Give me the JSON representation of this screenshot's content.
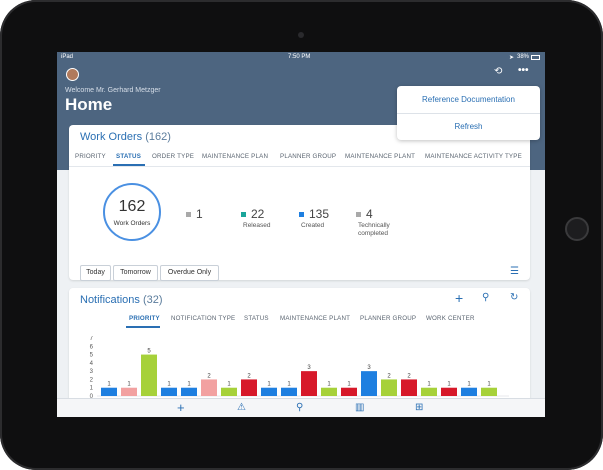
{
  "device": {
    "label": "iPad"
  },
  "status_bar": {
    "carrier": "iPad",
    "time": "7:50 PM",
    "battery": "38%"
  },
  "header": {
    "welcome": "Welcome Mr. Gerhard Metzger",
    "title": "Home"
  },
  "menu": {
    "items": [
      "Reference Documentation",
      "Refresh"
    ]
  },
  "work_orders": {
    "title": "Work Orders",
    "count": "(162)",
    "tabs": [
      "PRIORITY",
      "STATUS",
      "ORDER TYPE",
      "MAINTENANCE PLAN",
      "PLANNER GROUP",
      "MAINTENANCE PLANT",
      "MAINTENANCE ACTIVITY TYPE"
    ],
    "active_tab": "STATUS",
    "total": "162",
    "total_label": "Work Orders",
    "stats": [
      {
        "value": "1",
        "label": "",
        "color": "#a9a9a9"
      },
      {
        "value": "22",
        "label": "Released",
        "color": "#1aa59a"
      },
      {
        "value": "135",
        "label": "Created",
        "color": "#1e7fe0"
      },
      {
        "value": "4",
        "label": "Technically completed",
        "color": "#a9a9a9"
      }
    ],
    "filters": [
      "Today",
      "Tomorrow",
      "Overdue Only"
    ]
  },
  "notifications": {
    "title": "Notifications",
    "count": "(32)",
    "tabs": [
      "PRIORITY",
      "NOTIFICATION TYPE",
      "STATUS",
      "MAINTENANCE PLANT",
      "PLANNER GROUP",
      "WORK CENTER"
    ],
    "active_tab": "PRIORITY"
  },
  "chart_data": {
    "type": "bar",
    "ylim": [
      0,
      7
    ],
    "yticks": [
      "0",
      "1",
      "2",
      "3",
      "4",
      "5",
      "6",
      "7"
    ],
    "values": [
      1,
      1,
      5,
      1,
      1,
      2,
      1,
      2,
      1,
      1,
      3,
      1,
      1,
      3,
      2,
      2,
      1,
      1,
      1,
      1
    ],
    "colors": [
      "#1e7fe0",
      "#f2a1a1",
      "#a6d13a",
      "#1e7fe0",
      "#1e7fe0",
      "#f2a1a1",
      "#a6d13a",
      "#d7192a",
      "#1e7fe0",
      "#1e7fe0",
      "#d7192a",
      "#a6d13a",
      "#d7192a",
      "#1e7fe0",
      "#a6d13a",
      "#d7192a",
      "#a6d13a",
      "#d7192a",
      "#1e7fe0",
      "#a6d13a"
    ]
  },
  "toolbar": {
    "icons": [
      "plus-icon",
      "warning-icon",
      "search-icon",
      "map-icon",
      "grid-icon"
    ]
  }
}
